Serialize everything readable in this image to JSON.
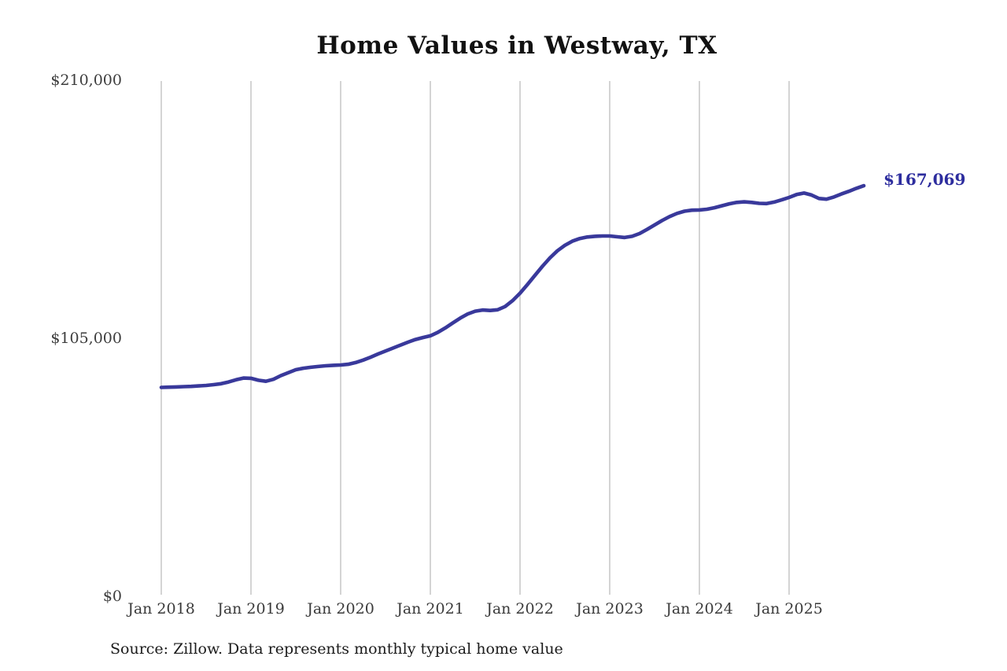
{
  "title": "Home Values in Westway, TX",
  "source": "Source: Zillow. Data represents monthly typical home value",
  "annotation": {
    "label": "$167,069"
  },
  "colors": {
    "line": "#39399b",
    "grid": "#c9c9c9",
    "axis_text": "#3d3d3d",
    "annotation_text": "#2d2d9e"
  },
  "chart_data": {
    "type": "line",
    "title": "Home Values in Westway, TX",
    "xlabel": "",
    "ylabel": "",
    "frequency": "monthly",
    "x_start": "Jan 2018",
    "x_end": "Nov 2025",
    "x_tick_labels": [
      "Jan 2018",
      "Jan 2019",
      "Jan 2020",
      "Jan 2021",
      "Jan 2022",
      "Jan 2023",
      "Jan 2024",
      "Jan 2025"
    ],
    "y_tick_labels": [
      "$0",
      "$105,000",
      "$210,000"
    ],
    "y_tick_values": [
      0,
      105000,
      210000
    ],
    "ylim": [
      0,
      210000
    ],
    "grid": "vertical-only",
    "legend": "none",
    "final_value": 167069,
    "final_value_label": "$167,069",
    "series": [
      {
        "name": "Typical home value",
        "values": [
          85000,
          85100,
          85200,
          85300,
          85400,
          85600,
          85800,
          86100,
          86500,
          87200,
          88100,
          88800,
          88700,
          87900,
          87500,
          88300,
          89800,
          91000,
          92200,
          92800,
          93200,
          93500,
          93800,
          94000,
          94100,
          94400,
          95100,
          96100,
          97300,
          98600,
          99800,
          101000,
          102200,
          103400,
          104500,
          105300,
          106000,
          107400,
          109200,
          111200,
          113200,
          114900,
          116000,
          116500,
          116300,
          116600,
          117900,
          120300,
          123300,
          126900,
          130600,
          134300,
          137700,
          140600,
          142800,
          144500,
          145600,
          146200,
          146500,
          146600,
          146600,
          146300,
          146000,
          146500,
          147600,
          149300,
          151100,
          152900,
          154500,
          155800,
          156700,
          157100,
          157200,
          157500,
          158100,
          158900,
          159700,
          160300,
          160500,
          160300,
          159900,
          159800,
          160400,
          161300,
          162300,
          163500,
          164100,
          163300,
          161900,
          161600,
          162500,
          163700,
          164800,
          166000,
          167069
        ]
      }
    ]
  }
}
